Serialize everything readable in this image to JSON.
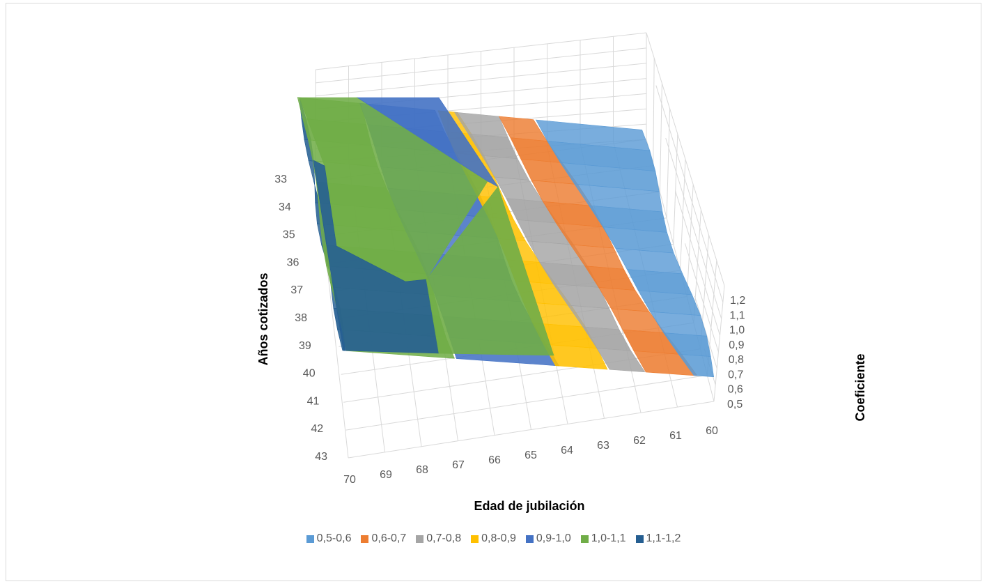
{
  "chart_data": {
    "type": "surface",
    "title": "",
    "xlabel": "Edad de jubilación",
    "ylabel": "Años cotizados",
    "zlabel": "Coeficiente",
    "x": [
      60,
      61,
      62,
      63,
      64,
      65,
      66,
      67,
      68,
      69,
      70
    ],
    "y": [
      33,
      34,
      35,
      36,
      37,
      38,
      39,
      40,
      41,
      42,
      43
    ],
    "z_ticks": [
      "0,5",
      "0,6",
      "0,7",
      "0,8",
      "0,9",
      "1,0",
      "1,1",
      "1,2"
    ],
    "zlim": [
      0.5,
      1.2
    ],
    "grid": true,
    "legend_position": "bottom",
    "bands": [
      {
        "name": "0,5-0,6",
        "color": "#5B9BD5"
      },
      {
        "name": "0,6-0,7",
        "color": "#ED7D31"
      },
      {
        "name": "0,7-0,8",
        "color": "#A5A5A5"
      },
      {
        "name": "0,8-0,9",
        "color": "#FFC000"
      },
      {
        "name": "0,9-1,0",
        "color": "#4472C4"
      },
      {
        "name": "1,0-1,1",
        "color": "#70AD47"
      },
      {
        "name": "1,1-1,2",
        "color": "#255E91"
      }
    ]
  }
}
